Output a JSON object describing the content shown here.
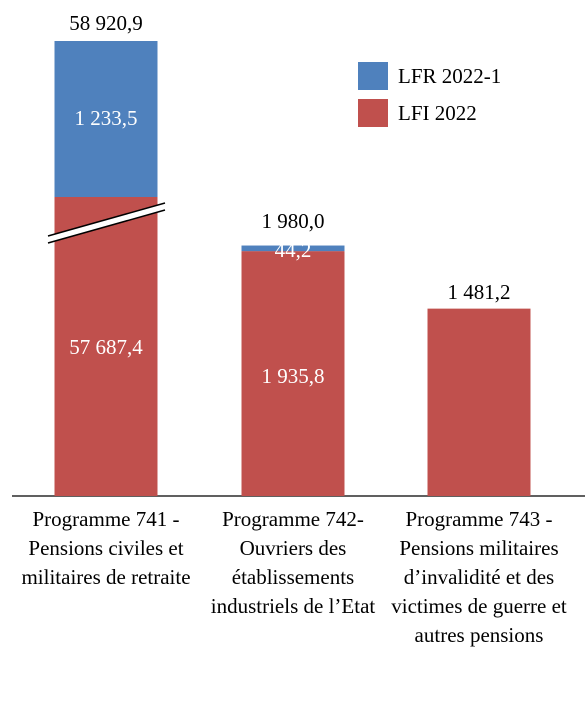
{
  "chart_data": {
    "type": "bar",
    "stacked": true,
    "broken_axis_on_first_bar": true,
    "categories": [
      "Programme 741 - Pensions civiles et militaires de retraite",
      "Programme 742- Ouvriers des établissements industriels de l’Etat",
      "Programme 743 - Pensions militaires d’invalidité et des victimes de guerre et autres pensions"
    ],
    "series": [
      {
        "name": "LFI 2022",
        "color": "#C0504D",
        "values": [
          57687.4,
          1935.8,
          1481.2
        ],
        "labels": [
          "57 687,4",
          "1 935,8",
          ""
        ]
      },
      {
        "name": "LFR 2022-1",
        "color": "#4F81BD",
        "values": [
          1233.5,
          44.2,
          0
        ],
        "labels": [
          "1 233,5",
          "44,2",
          ""
        ]
      }
    ],
    "totals": [
      58920.9,
      1980.0,
      1481.2
    ],
    "total_labels": [
      "58 920,9",
      "1 980,0",
      "1 481,2"
    ],
    "legend": {
      "placement": "top-right",
      "entries": [
        "LFR 2022-1",
        "LFI 2022"
      ]
    },
    "xlabel": "",
    "ylabel": "",
    "grid": false
  }
}
